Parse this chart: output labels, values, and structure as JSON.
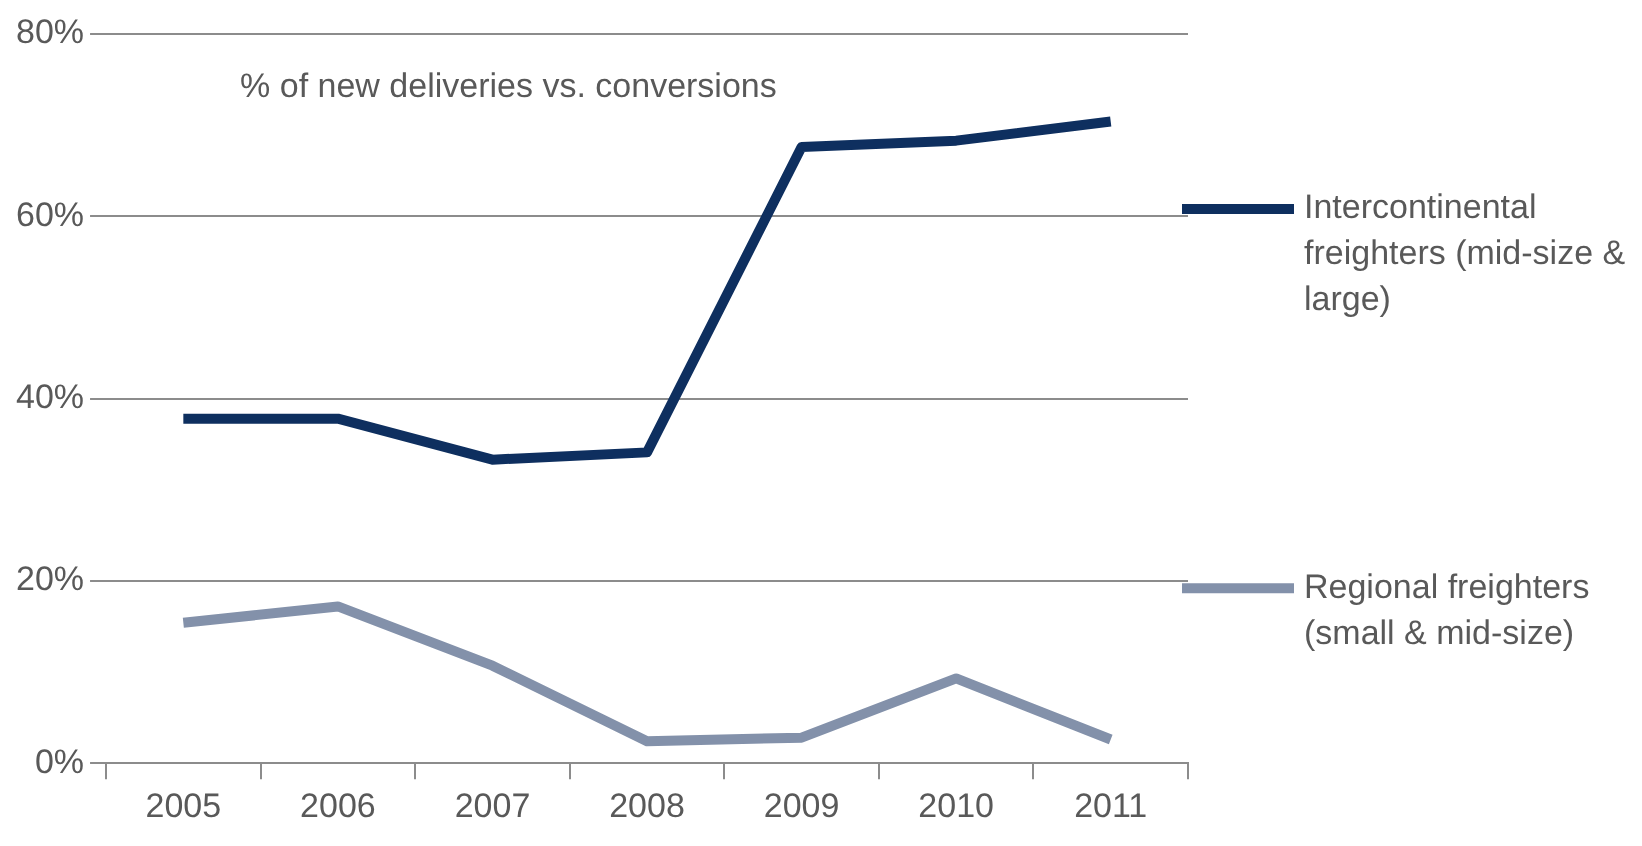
{
  "chart_data": {
    "type": "line",
    "categories": [
      "2005",
      "2006",
      "2007",
      "2008",
      "2009",
      "2010",
      "2011"
    ],
    "series": [
      {
        "name": "Intercontinental freighters (mid-size & large)",
        "color": "#0e2f5f",
        "values": [
          37.8,
          37.8,
          33.3,
          34.1,
          67.6,
          68.3,
          70.4
        ]
      },
      {
        "name": "Regional freighters (small & mid-size)",
        "color": "#8391aa",
        "values": [
          15.4,
          17.2,
          10.7,
          2.4,
          2.8,
          9.3,
          2.6
        ]
      }
    ],
    "annotations": [
      "% of new deliveries vs. conversions"
    ],
    "ylim": [
      0,
      80
    ],
    "yticks": [
      {
        "value": 0,
        "label": "0%"
      },
      {
        "value": 20,
        "label": "20%"
      },
      {
        "value": 40,
        "label": "40%"
      },
      {
        "value": 60,
        "label": "60%"
      },
      {
        "value": 80,
        "label": "80%"
      }
    ],
    "grid": "y",
    "legend": "right",
    "marker": "none",
    "line_style": "solid"
  }
}
